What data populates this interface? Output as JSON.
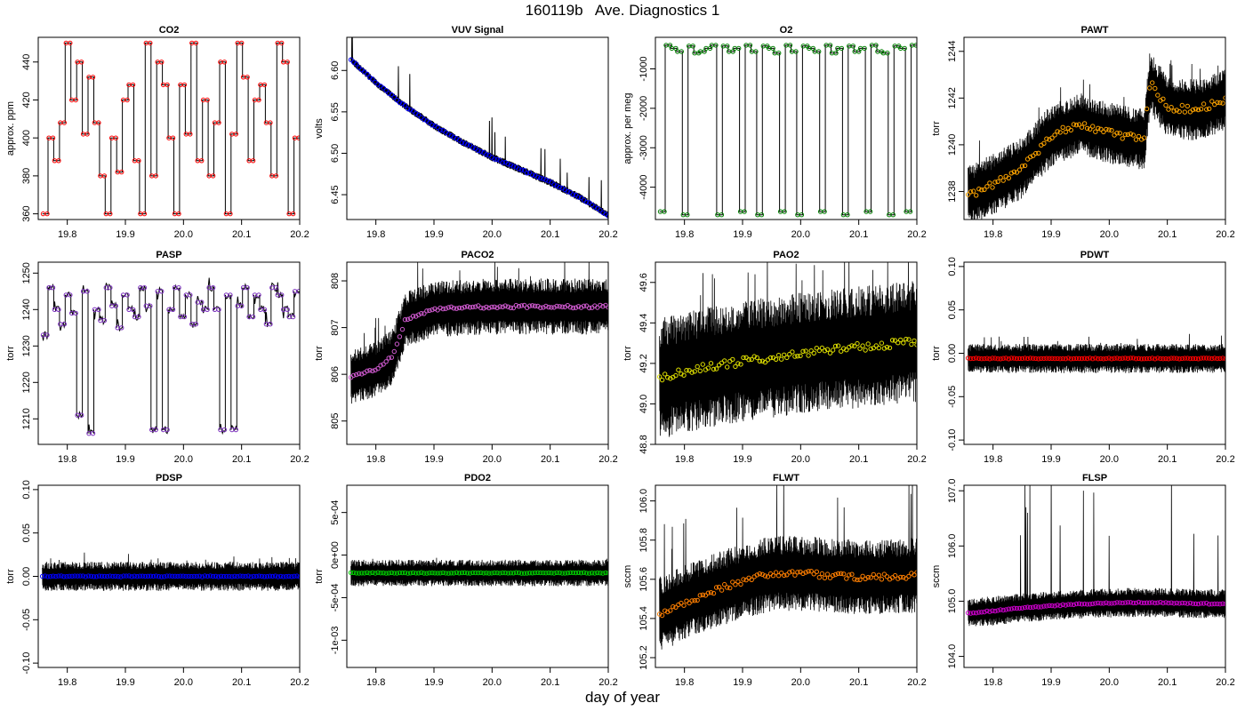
{
  "figure": {
    "title": "160119b   Ave. Diagnostics 1",
    "xlabel": "day of year"
  },
  "chart_data": [
    {
      "type": "line",
      "title": "CO2",
      "ylabel": "approx. ppm",
      "color": "#ff0000",
      "mode": "step",
      "xlim": [
        19.75,
        20.2
      ],
      "ylim": [
        357,
        453
      ],
      "yticks": [
        {
          "v": 360,
          "t": "360"
        },
        {
          "v": 380,
          "t": "380"
        },
        {
          "v": 400,
          "t": "400"
        },
        {
          "v": 420,
          "t": "420"
        },
        {
          "v": 440,
          "t": "440"
        }
      ],
      "xticks": [
        {
          "v": 19.8,
          "t": "19.8"
        },
        {
          "v": 19.9,
          "t": "19.9"
        },
        {
          "v": 20.0,
          "t": "20.0"
        },
        {
          "v": 20.1,
          "t": "20.1"
        },
        {
          "v": 20.2,
          "t": "20.2"
        }
      ],
      "series": [
        {
          "name": "CO2",
          "step_levels": [
            360,
            400,
            388,
            408,
            450,
            420,
            440,
            402,
            432,
            408,
            380,
            360,
            400,
            382,
            420,
            428,
            388,
            360,
            450,
            380,
            440,
            428,
            400,
            360,
            428,
            402,
            450,
            388,
            420,
            380,
            408,
            440,
            360,
            402,
            450,
            432,
            388,
            420,
            428,
            408,
            380,
            450,
            440,
            360,
            400
          ],
          "spike": 0,
          "noise_amp": 0,
          "avg_noise": 0,
          "trend": null
        }
      ]
    },
    {
      "type": "line",
      "title": "VUV Signal",
      "ylabel": "volts",
      "color": "#0000ff",
      "mode": "decay",
      "xlim": [
        19.75,
        20.2
      ],
      "ylim": [
        6.42,
        6.64
      ],
      "yticks": [
        {
          "v": 6.45,
          "t": "6.45"
        },
        {
          "v": 6.5,
          "t": "6.50"
        },
        {
          "v": 6.55,
          "t": "6.55"
        },
        {
          "v": 6.6,
          "t": "6.60"
        }
      ],
      "xticks": [
        {
          "v": 19.8,
          "t": "19.8"
        },
        {
          "v": 19.9,
          "t": "19.9"
        },
        {
          "v": 20.0,
          "t": "20.0"
        },
        {
          "v": 20.1,
          "t": "20.1"
        },
        {
          "v": 20.2,
          "t": "20.2"
        }
      ],
      "series": [
        {
          "name": "VUV Signal",
          "trend": [
            [
              19.757,
              6.613
            ],
            [
              19.8,
              6.585
            ],
            [
              19.85,
              6.557
            ],
            [
              19.9,
              6.533
            ],
            [
              19.95,
              6.513
            ],
            [
              20.0,
              6.495
            ],
            [
              20.05,
              6.48
            ],
            [
              20.1,
              6.465
            ],
            [
              20.15,
              6.447
            ],
            [
              20.2,
              6.425
            ]
          ],
          "spike": 0.03,
          "noise_amp": 0.004,
          "avg_noise": 0.001
        }
      ]
    },
    {
      "type": "line",
      "title": "O2",
      "ylabel": "approx. per meg",
      "color": "#008000",
      "mode": "step",
      "xlim": [
        19.75,
        20.2
      ],
      "ylim": [
        -4820,
        -200
      ],
      "yticks": [
        {
          "v": -4000,
          "t": "-4000"
        },
        {
          "v": -3000,
          "t": "-3000"
        },
        {
          "v": -2000,
          "t": "-2000"
        },
        {
          "v": -1000,
          "t": "-1000"
        }
      ],
      "xticks": [
        {
          "v": 19.8,
          "t": "19.8"
        },
        {
          "v": 19.9,
          "t": "19.9"
        },
        {
          "v": 20.0,
          "t": "20.0"
        },
        {
          "v": 20.1,
          "t": "20.1"
        },
        {
          "v": 20.2,
          "t": "20.2"
        }
      ],
      "series": [
        {
          "name": "O2",
          "step_levels": [
            -4620,
            -400,
            -480,
            -560,
            -4700,
            -420,
            -600,
            -560,
            -480,
            -400,
            -4700,
            -420,
            -560,
            -480,
            -4620,
            -400,
            -560,
            -4700,
            -420,
            -480,
            -600,
            -4620,
            -400,
            -560,
            -4700,
            -420,
            -480,
            -560,
            -4620,
            -400,
            -600,
            -480,
            -4700,
            -420,
            -560,
            -480,
            -4620,
            -400,
            -560,
            -600,
            -4700,
            -420,
            -480,
            -4620,
            -400
          ],
          "spike": 0,
          "noise_amp": 0,
          "avg_noise": 0,
          "trend": null
        }
      ]
    },
    {
      "type": "line",
      "title": "PAWT",
      "ylabel": "torr",
      "color": "#ffa500",
      "mode": "noise",
      "xlim": [
        19.75,
        20.2
      ],
      "ylim": [
        1236.8,
        1244.6
      ],
      "yticks": [
        {
          "v": 1238,
          "t": "1238"
        },
        {
          "v": 1240,
          "t": "1240"
        },
        {
          "v": 1242,
          "t": "1242"
        },
        {
          "v": 1244,
          "t": "1244"
        }
      ],
      "xticks": [
        {
          "v": 19.8,
          "t": "19.8"
        },
        {
          "v": 19.9,
          "t": "19.9"
        },
        {
          "v": 20.0,
          "t": "20.0"
        },
        {
          "v": 20.1,
          "t": "20.1"
        },
        {
          "v": 20.2,
          "t": "20.2"
        }
      ],
      "series": [
        {
          "name": "PAWT",
          "trend": [
            [
              19.757,
              1237.8
            ],
            [
              19.8,
              1238.3
            ],
            [
              19.85,
              1239.0
            ],
            [
              19.9,
              1240.4
            ],
            [
              19.95,
              1240.9
            ],
            [
              20.0,
              1240.5
            ],
            [
              20.06,
              1240.2
            ],
            [
              20.07,
              1242.7
            ],
            [
              20.1,
              1241.6
            ],
            [
              20.15,
              1241.5
            ],
            [
              20.2,
              1241.9
            ]
          ],
          "spike": 0.9,
          "noise_amp": 1.1,
          "avg_noise": 0.15
        }
      ]
    },
    {
      "type": "line",
      "title": "PASP",
      "ylabel": "torr",
      "color": "#7b2fbe",
      "mode": "step",
      "xlim": [
        19.75,
        20.2
      ],
      "ylim": [
        1203,
        1253
      ],
      "yticks": [
        {
          "v": 1210,
          "t": "1210"
        },
        {
          "v": 1220,
          "t": "1220"
        },
        {
          "v": 1230,
          "t": "1230"
        },
        {
          "v": 1240,
          "t": "1240"
        },
        {
          "v": 1250,
          "t": "1250"
        }
      ],
      "xticks": [
        {
          "v": 19.8,
          "t": "19.8"
        },
        {
          "v": 19.9,
          "t": "19.9"
        },
        {
          "v": 20.0,
          "t": "20.0"
        },
        {
          "v": 20.1,
          "t": "20.1"
        },
        {
          "v": 20.2,
          "t": "20.2"
        }
      ],
      "series": [
        {
          "name": "PASP",
          "step_levels": [
            1233,
            1246,
            1240,
            1236,
            1244,
            1239,
            1211,
            1245,
            1206,
            1240,
            1237,
            1246,
            1241,
            1235,
            1244,
            1240,
            1238,
            1246,
            1241,
            1207,
            1245,
            1207,
            1240,
            1246,
            1238,
            1244,
            1236,
            1242,
            1240,
            1246,
            1240,
            1207,
            1244,
            1207,
            1241,
            1246,
            1238,
            1244,
            1240,
            1236,
            1246,
            1244,
            1240,
            1238,
            1245
          ],
          "spike": 0,
          "noise_amp": 1.0,
          "avg_noise": 0,
          "trend": null
        }
      ]
    },
    {
      "type": "line",
      "title": "PACO2",
      "ylabel": "torr",
      "color": "#d05ad0",
      "mode": "noise",
      "xlim": [
        19.75,
        20.2
      ],
      "ylim": [
        804.5,
        808.4
      ],
      "yticks": [
        {
          "v": 805,
          "t": "805"
        },
        {
          "v": 806,
          "t": "806"
        },
        {
          "v": 807,
          "t": "807"
        },
        {
          "v": 808,
          "t": "808"
        }
      ],
      "xticks": [
        {
          "v": 19.8,
          "t": "19.8"
        },
        {
          "v": 19.9,
          "t": "19.9"
        },
        {
          "v": 20.0,
          "t": "20.0"
        },
        {
          "v": 20.1,
          "t": "20.1"
        },
        {
          "v": 20.2,
          "t": "20.2"
        }
      ],
      "series": [
        {
          "name": "PACO2",
          "trend": [
            [
              19.757,
              805.95
            ],
            [
              19.8,
              806.1
            ],
            [
              19.83,
              806.4
            ],
            [
              19.85,
              807.15
            ],
            [
              19.9,
              807.4
            ],
            [
              20.0,
              807.45
            ],
            [
              20.1,
              807.45
            ],
            [
              20.2,
              807.45
            ]
          ],
          "spike": 0.5,
          "noise_amp": 0.5,
          "avg_noise": 0.03
        }
      ]
    },
    {
      "type": "line",
      "title": "PAO2",
      "ylabel": "torr",
      "color": "#e0e000",
      "mode": "noise",
      "xlim": [
        19.75,
        20.2
      ],
      "ylim": [
        48.8,
        49.7
      ],
      "yticks": [
        {
          "v": 48.8,
          "t": "48.8"
        },
        {
          "v": 49.0,
          "t": "49.0"
        },
        {
          "v": 49.2,
          "t": "49.2"
        },
        {
          "v": 49.4,
          "t": "49.4"
        },
        {
          "v": 49.6,
          "t": "49.6"
        }
      ],
      "xticks": [
        {
          "v": 19.8,
          "t": "19.8"
        },
        {
          "v": 19.9,
          "t": "19.9"
        },
        {
          "v": 20.0,
          "t": "20.0"
        },
        {
          "v": 20.1,
          "t": "20.1"
        },
        {
          "v": 20.2,
          "t": "20.2"
        }
      ],
      "series": [
        {
          "name": "PAO2",
          "trend": [
            [
              19.757,
              49.12
            ],
            [
              19.8,
              49.16
            ],
            [
              19.9,
              49.21
            ],
            [
              20.0,
              49.25
            ],
            [
              20.1,
              49.28
            ],
            [
              20.2,
              49.31
            ]
          ],
          "spike": 0.2,
          "noise_amp": 0.25,
          "avg_noise": 0.02
        }
      ]
    },
    {
      "type": "line",
      "title": "PDWT",
      "ylabel": "torr",
      "color": "#ff0000",
      "mode": "noise",
      "xlim": [
        19.75,
        20.2
      ],
      "ylim": [
        -0.105,
        0.105
      ],
      "yticks": [
        {
          "v": -0.1,
          "t": "-0.10"
        },
        {
          "v": -0.05,
          "t": "-0.05"
        },
        {
          "v": 0,
          "t": "0.00"
        },
        {
          "v": 0.05,
          "t": "0.05"
        },
        {
          "v": 0.1,
          "t": "0.10"
        }
      ],
      "xticks": [
        {
          "v": 19.8,
          "t": "19.8"
        },
        {
          "v": 19.9,
          "t": "19.9"
        },
        {
          "v": 20.0,
          "t": "20.0"
        },
        {
          "v": 20.1,
          "t": "20.1"
        },
        {
          "v": 20.2,
          "t": "20.2"
        }
      ],
      "series": [
        {
          "name": "PDWT",
          "trend": [
            [
              19.757,
              -0.006
            ],
            [
              20.2,
              -0.006
            ]
          ],
          "spike": 0.008,
          "noise_amp": 0.014,
          "avg_noise": 0.0005
        }
      ]
    },
    {
      "type": "line",
      "title": "PDSP",
      "ylabel": "torr",
      "color": "#0000ff",
      "mode": "noise",
      "xlim": [
        19.75,
        20.2
      ],
      "ylim": [
        -0.105,
        0.105
      ],
      "yticks": [
        {
          "v": -0.1,
          "t": "-0.10"
        },
        {
          "v": -0.05,
          "t": "-0.05"
        },
        {
          "v": 0,
          "t": "0.00"
        },
        {
          "v": 0.05,
          "t": "0.05"
        },
        {
          "v": 0.1,
          "t": "0.10"
        }
      ],
      "xticks": [
        {
          "v": 19.8,
          "t": "19.8"
        },
        {
          "v": 19.9,
          "t": "19.9"
        },
        {
          "v": 20.0,
          "t": "20.0"
        },
        {
          "v": 20.1,
          "t": "20.1"
        },
        {
          "v": 20.2,
          "t": "20.2"
        }
      ],
      "series": [
        {
          "name": "PDSP",
          "trend": [
            [
              19.757,
              0.0
            ],
            [
              20.2,
              0.0
            ]
          ],
          "spike": 0.008,
          "noise_amp": 0.014,
          "avg_noise": 0.0005
        }
      ]
    },
    {
      "type": "line",
      "title": "PDO2",
      "ylabel": "torr",
      "color": "#00cc00",
      "mode": "noise",
      "xlim": [
        19.75,
        20.2
      ],
      "ylim": [
        -0.00132,
        0.00082
      ],
      "yticks": [
        {
          "v": -0.001,
          "t": "-1e-03"
        },
        {
          "v": -0.0005,
          "t": "-5e-04"
        },
        {
          "v": 0,
          "t": "0e+00"
        },
        {
          "v": 0.0005,
          "t": "5e-04"
        }
      ],
      "xticks": [
        {
          "v": 19.8,
          "t": "19.8"
        },
        {
          "v": 19.9,
          "t": "19.9"
        },
        {
          "v": 20.0,
          "t": "20.0"
        },
        {
          "v": 20.1,
          "t": "20.1"
        },
        {
          "v": 20.2,
          "t": "20.2"
        }
      ],
      "series": [
        {
          "name": "PDO2",
          "trend": [
            [
              19.757,
              -0.00021
            ],
            [
              20.2,
              -0.00021
            ]
          ],
          "spike": 3e-05,
          "noise_amp": 0.00013,
          "avg_noise": 5e-06
        }
      ]
    },
    {
      "type": "line",
      "title": "FLWT",
      "ylabel": "sccm",
      "color": "#ff7f00",
      "mode": "noise",
      "xlim": [
        19.75,
        20.2
      ],
      "ylim": [
        105.15,
        106.08
      ],
      "yticks": [
        {
          "v": 105.2,
          "t": "105.2"
        },
        {
          "v": 105.4,
          "t": "105.4"
        },
        {
          "v": 105.6,
          "t": "105.6"
        },
        {
          "v": 105.8,
          "t": "105.8"
        },
        {
          "v": 106.0,
          "t": "106.0"
        }
      ],
      "xticks": [
        {
          "v": 19.8,
          "t": "19.8"
        },
        {
          "v": 19.9,
          "t": "19.9"
        },
        {
          "v": 20.0,
          "t": "20.0"
        },
        {
          "v": 20.1,
          "t": "20.1"
        },
        {
          "v": 20.2,
          "t": "20.2"
        }
      ],
      "series": [
        {
          "name": "FLWT",
          "trend": [
            [
              19.757,
              105.42
            ],
            [
              19.8,
              105.48
            ],
            [
              19.85,
              105.54
            ],
            [
              19.9,
              105.59
            ],
            [
              19.95,
              105.63
            ],
            [
              20.0,
              105.63
            ],
            [
              20.05,
              105.62
            ],
            [
              20.1,
              105.61
            ],
            [
              20.2,
              105.62
            ]
          ],
          "spike": 0.25,
          "noise_amp": 0.16,
          "avg_noise": 0.015
        }
      ]
    },
    {
      "type": "line",
      "title": "FLSP",
      "ylabel": "sccm",
      "color": "#cc00cc",
      "mode": "noise",
      "xlim": [
        19.75,
        20.2
      ],
      "ylim": [
        103.8,
        107.1
      ],
      "yticks": [
        {
          "v": 104.0,
          "t": "104.0"
        },
        {
          "v": 105.0,
          "t": "105.0"
        },
        {
          "v": 106.0,
          "t": "106.0"
        },
        {
          "v": 107.0,
          "t": "107.0"
        }
      ],
      "xticks": [
        {
          "v": 19.8,
          "t": "19.8"
        },
        {
          "v": 19.9,
          "t": "19.9"
        },
        {
          "v": 20.0,
          "t": "20.0"
        },
        {
          "v": 20.1,
          "t": "20.1"
        },
        {
          "v": 20.2,
          "t": "20.2"
        }
      ],
      "series": [
        {
          "name": "FLSP",
          "trend": [
            [
              19.757,
              104.78
            ],
            [
              19.85,
              104.88
            ],
            [
              19.95,
              104.95
            ],
            [
              20.05,
              104.98
            ],
            [
              20.2,
              104.95
            ]
          ],
          "spike": 1.6,
          "noise_amp": 0.22,
          "avg_noise": 0.01
        }
      ]
    }
  ]
}
